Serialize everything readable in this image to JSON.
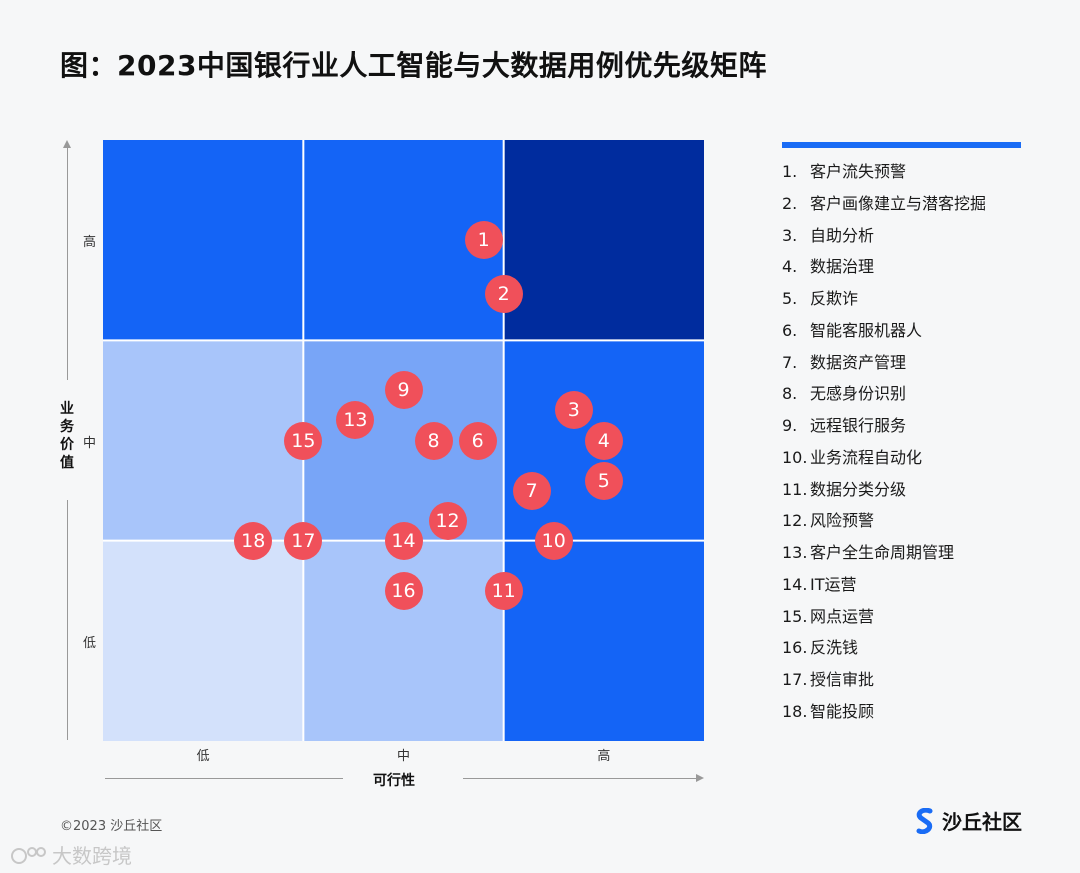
{
  "title": "图：2023中国银行业人工智能与大数据用例优先级矩阵",
  "chart_data": {
    "type": "scatter",
    "title": "图：2023中国银行业人工智能与大数据用例优先级矩阵",
    "xlabel": "可行性",
    "ylabel": "业务价值",
    "x_categories": [
      "低",
      "中",
      "高"
    ],
    "y_categories": [
      "低",
      "中",
      "高"
    ],
    "xlim": [
      0,
      3
    ],
    "ylim": [
      0,
      3
    ],
    "cell_colors": [
      [
        "#d3e1fb",
        "#a8c5fa",
        "#1464f6"
      ],
      [
        "#a8c5fa",
        "#78a5f7",
        "#1464f6"
      ],
      [
        "#1464f6",
        "#1464f6",
        "#002c9e"
      ]
    ],
    "points": [
      {
        "id": "1",
        "x": 1.9,
        "y": 2.5
      },
      {
        "id": "2",
        "x": 2.0,
        "y": 2.23
      },
      {
        "id": "3",
        "x": 2.35,
        "y": 1.65
      },
      {
        "id": "4",
        "x": 2.5,
        "y": 1.5
      },
      {
        "id": "5",
        "x": 2.5,
        "y": 1.3
      },
      {
        "id": "6",
        "x": 1.87,
        "y": 1.5
      },
      {
        "id": "7",
        "x": 2.14,
        "y": 1.25
      },
      {
        "id": "8",
        "x": 1.65,
        "y": 1.5
      },
      {
        "id": "9",
        "x": 1.5,
        "y": 1.75
      },
      {
        "id": "10",
        "x": 2.25,
        "y": 1.0
      },
      {
        "id": "11",
        "x": 2.0,
        "y": 0.75
      },
      {
        "id": "12",
        "x": 1.72,
        "y": 1.1
      },
      {
        "id": "13",
        "x": 1.26,
        "y": 1.6
      },
      {
        "id": "14",
        "x": 1.5,
        "y": 1.0
      },
      {
        "id": "15",
        "x": 1.0,
        "y": 1.5
      },
      {
        "id": "16",
        "x": 1.5,
        "y": 0.75
      },
      {
        "id": "17",
        "x": 1.0,
        "y": 1.0
      },
      {
        "id": "18",
        "x": 0.75,
        "y": 1.0
      }
    ],
    "point_color": "#f0505a"
  },
  "legend": [
    {
      "num": "1.",
      "label": "客户流失预警"
    },
    {
      "num": "2.",
      "label": "客户画像建立与潜客挖掘"
    },
    {
      "num": "3.",
      "label": "自助分析"
    },
    {
      "num": "4.",
      "label": "数据治理"
    },
    {
      "num": "5.",
      "label": "反欺诈"
    },
    {
      "num": "6.",
      "label": "智能客服机器人"
    },
    {
      "num": "7.",
      "label": "数据资产管理"
    },
    {
      "num": "8.",
      "label": "无感身份识别"
    },
    {
      "num": "9.",
      "label": "远程银行服务"
    },
    {
      "num": "10.",
      "label": "业务流程自动化"
    },
    {
      "num": "11.",
      "label": "数据分类分级"
    },
    {
      "num": "12.",
      "label": "风险预警"
    },
    {
      "num": "13.",
      "label": "客户全生命周期管理"
    },
    {
      "num": "14.",
      "label": "IT运营"
    },
    {
      "num": "15.",
      "label": "网点运营"
    },
    {
      "num": "16.",
      "label": "反洗钱"
    },
    {
      "num": "17.",
      "label": "授信审批"
    },
    {
      "num": "18.",
      "label": "智能投顾"
    }
  ],
  "colors": {
    "legend_bar": "#1a6cf5"
  },
  "footer": {
    "copyright": "©2023 沙丘社区",
    "brand": "沙丘社区",
    "brand_icon": "s-logo-icon"
  },
  "watermark": {
    "text": "大数跨境",
    "icon": "watermark-logo-icon"
  }
}
